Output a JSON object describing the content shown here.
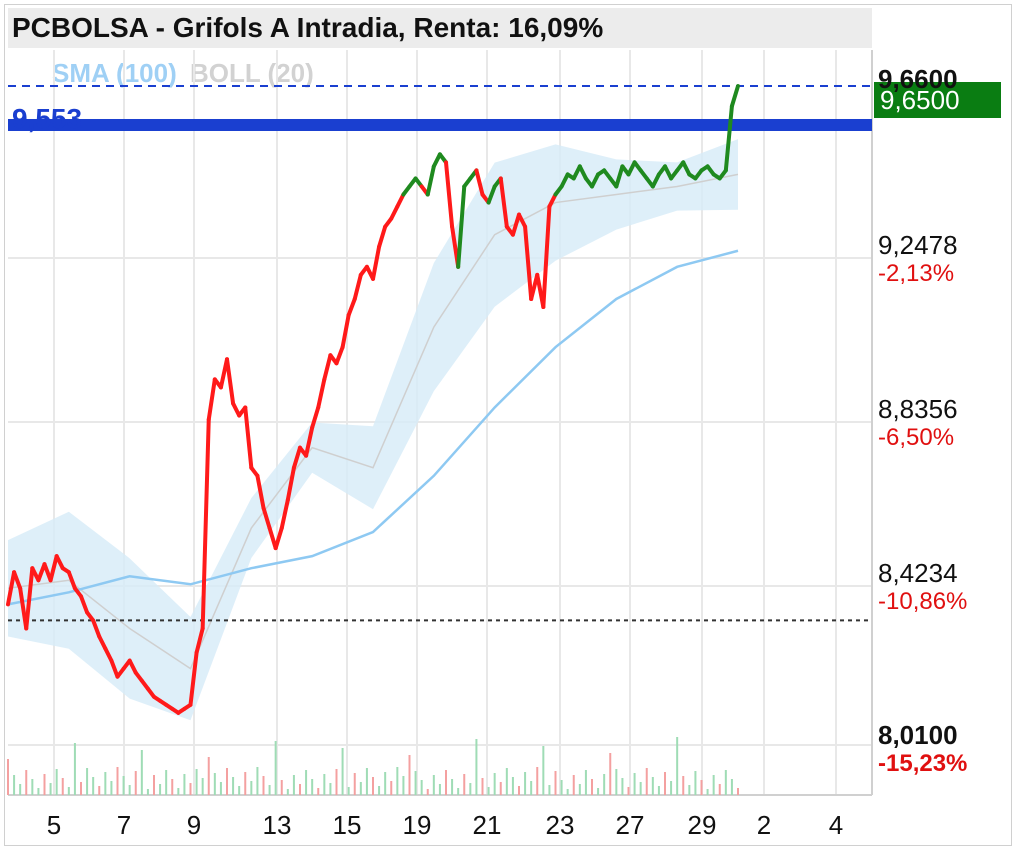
{
  "window": {
    "title": "PCBOLSA - Grifols A Intradia, Renta: 16,09%"
  },
  "indicators": [
    {
      "label": "SMA (100)",
      "color": "#9fd0f5"
    },
    {
      "label": "BOLL (20)",
      "color": "#cfcfcf"
    }
  ],
  "price_tag": "9,6500",
  "reference_label": "9,553",
  "colors": {
    "up": "#1f8a1f",
    "down": "#ff1a1a",
    "sma": "#8ec9f2",
    "boll": "#d6ebf8",
    "reference": "#1a3fd0",
    "tag": "#0a7d12"
  },
  "y_axis": {
    "top": "9,6600",
    "labels": [
      {
        "value": "9,2478",
        "pct": "-2,13%"
      },
      {
        "value": "8,8356",
        "pct": "-6,50%"
      },
      {
        "value": "8,4234",
        "pct": "-10,86%"
      },
      {
        "value": "8,0100",
        "pct": "-15,23%"
      }
    ]
  },
  "x_axis": {
    "labels": [
      "5",
      "7",
      "9",
      "13",
      "15",
      "19",
      "21",
      "23",
      "27",
      "29",
      "2",
      "4"
    ]
  },
  "chart_data": {
    "type": "line",
    "title": "PCBOLSA - Grifols A Intradia, Renta: 16,09%",
    "ylim": [
      8.01,
      9.66
    ],
    "reference_lines": [
      {
        "value": 9.553
      },
      {
        "value": 9.65
      },
      {
        "value": 8.32
      }
    ],
    "series": [
      {
        "name": "Grifols A",
        "x": [
          0,
          1,
          2,
          3,
          4,
          5,
          6,
          7,
          8,
          9,
          10,
          11,
          12,
          13,
          14,
          15,
          16,
          17,
          18,
          19,
          20,
          21,
          22,
          23,
          24,
          25,
          26,
          27,
          28,
          29,
          30,
          31,
          32,
          33,
          34,
          35,
          36,
          37,
          38,
          39,
          40,
          41,
          42,
          43,
          44,
          45,
          46,
          47,
          48,
          49,
          50,
          51,
          52,
          53,
          54,
          55,
          56,
          57,
          58,
          59,
          60,
          61,
          62,
          63,
          64,
          65,
          66,
          67,
          68,
          69,
          70,
          71,
          72,
          73,
          74,
          75,
          76,
          77,
          78,
          79,
          80,
          81,
          82,
          83,
          84,
          85,
          86,
          87,
          88,
          89,
          90,
          91,
          92,
          93,
          94,
          95,
          96,
          97,
          98,
          99,
          100,
          101,
          102,
          103,
          104,
          105,
          106,
          107,
          108,
          109,
          110,
          111,
          112,
          113,
          114,
          115,
          116,
          117,
          118,
          119,
          120
        ],
        "values": [
          8.36,
          8.44,
          8.4,
          8.3,
          8.45,
          8.42,
          8.46,
          8.42,
          8.48,
          8.45,
          8.44,
          8.4,
          8.38,
          8.34,
          8.32,
          8.28,
          8.25,
          8.22,
          8.18,
          8.2,
          8.22,
          8.19,
          8.17,
          8.15,
          8.13,
          8.12,
          8.11,
          8.1,
          8.09,
          8.1,
          8.11,
          8.24,
          8.3,
          8.82,
          8.92,
          8.9,
          8.97,
          8.86,
          8.83,
          8.85,
          8.7,
          8.68,
          8.6,
          8.55,
          8.5,
          8.55,
          8.62,
          8.7,
          8.75,
          8.73,
          8.8,
          8.85,
          8.92,
          8.98,
          8.96,
          9.0,
          9.08,
          9.12,
          9.18,
          9.2,
          9.17,
          9.25,
          9.3,
          9.32,
          9.35,
          9.38,
          9.4,
          9.42,
          9.4,
          9.38,
          9.45,
          9.48,
          9.46,
          9.3,
          9.2,
          9.4,
          9.42,
          9.44,
          9.38,
          9.36,
          9.4,
          9.42,
          9.3,
          9.28,
          9.33,
          9.3,
          9.12,
          9.18,
          9.1,
          9.35,
          9.38,
          9.4,
          9.43,
          9.42,
          9.45,
          9.42,
          9.4,
          9.43,
          9.44,
          9.42,
          9.4,
          9.45,
          9.43,
          9.46,
          9.44,
          9.42,
          9.4,
          9.43,
          9.45,
          9.42,
          9.44,
          9.46,
          9.43,
          9.42,
          9.44,
          9.45,
          9.43,
          9.42,
          9.44,
          9.6,
          9.65
        ]
      },
      {
        "name": "SMA (100)",
        "x": [
          0,
          10,
          20,
          30,
          40,
          50,
          60,
          70,
          80,
          90,
          100,
          110,
          120
        ],
        "values": [
          8.36,
          8.39,
          8.43,
          8.41,
          8.45,
          8.48,
          8.54,
          8.68,
          8.85,
          9.0,
          9.12,
          9.2,
          9.24
        ]
      },
      {
        "name": "BOLL (20)",
        "x": [
          0,
          10,
          20,
          30,
          40,
          50,
          60,
          70,
          80,
          90,
          100,
          110,
          120
        ],
        "values": [
          8.4,
          8.42,
          8.3,
          8.2,
          8.55,
          8.75,
          8.7,
          9.05,
          9.28,
          9.36,
          9.38,
          9.4,
          9.43
        ]
      }
    ]
  }
}
